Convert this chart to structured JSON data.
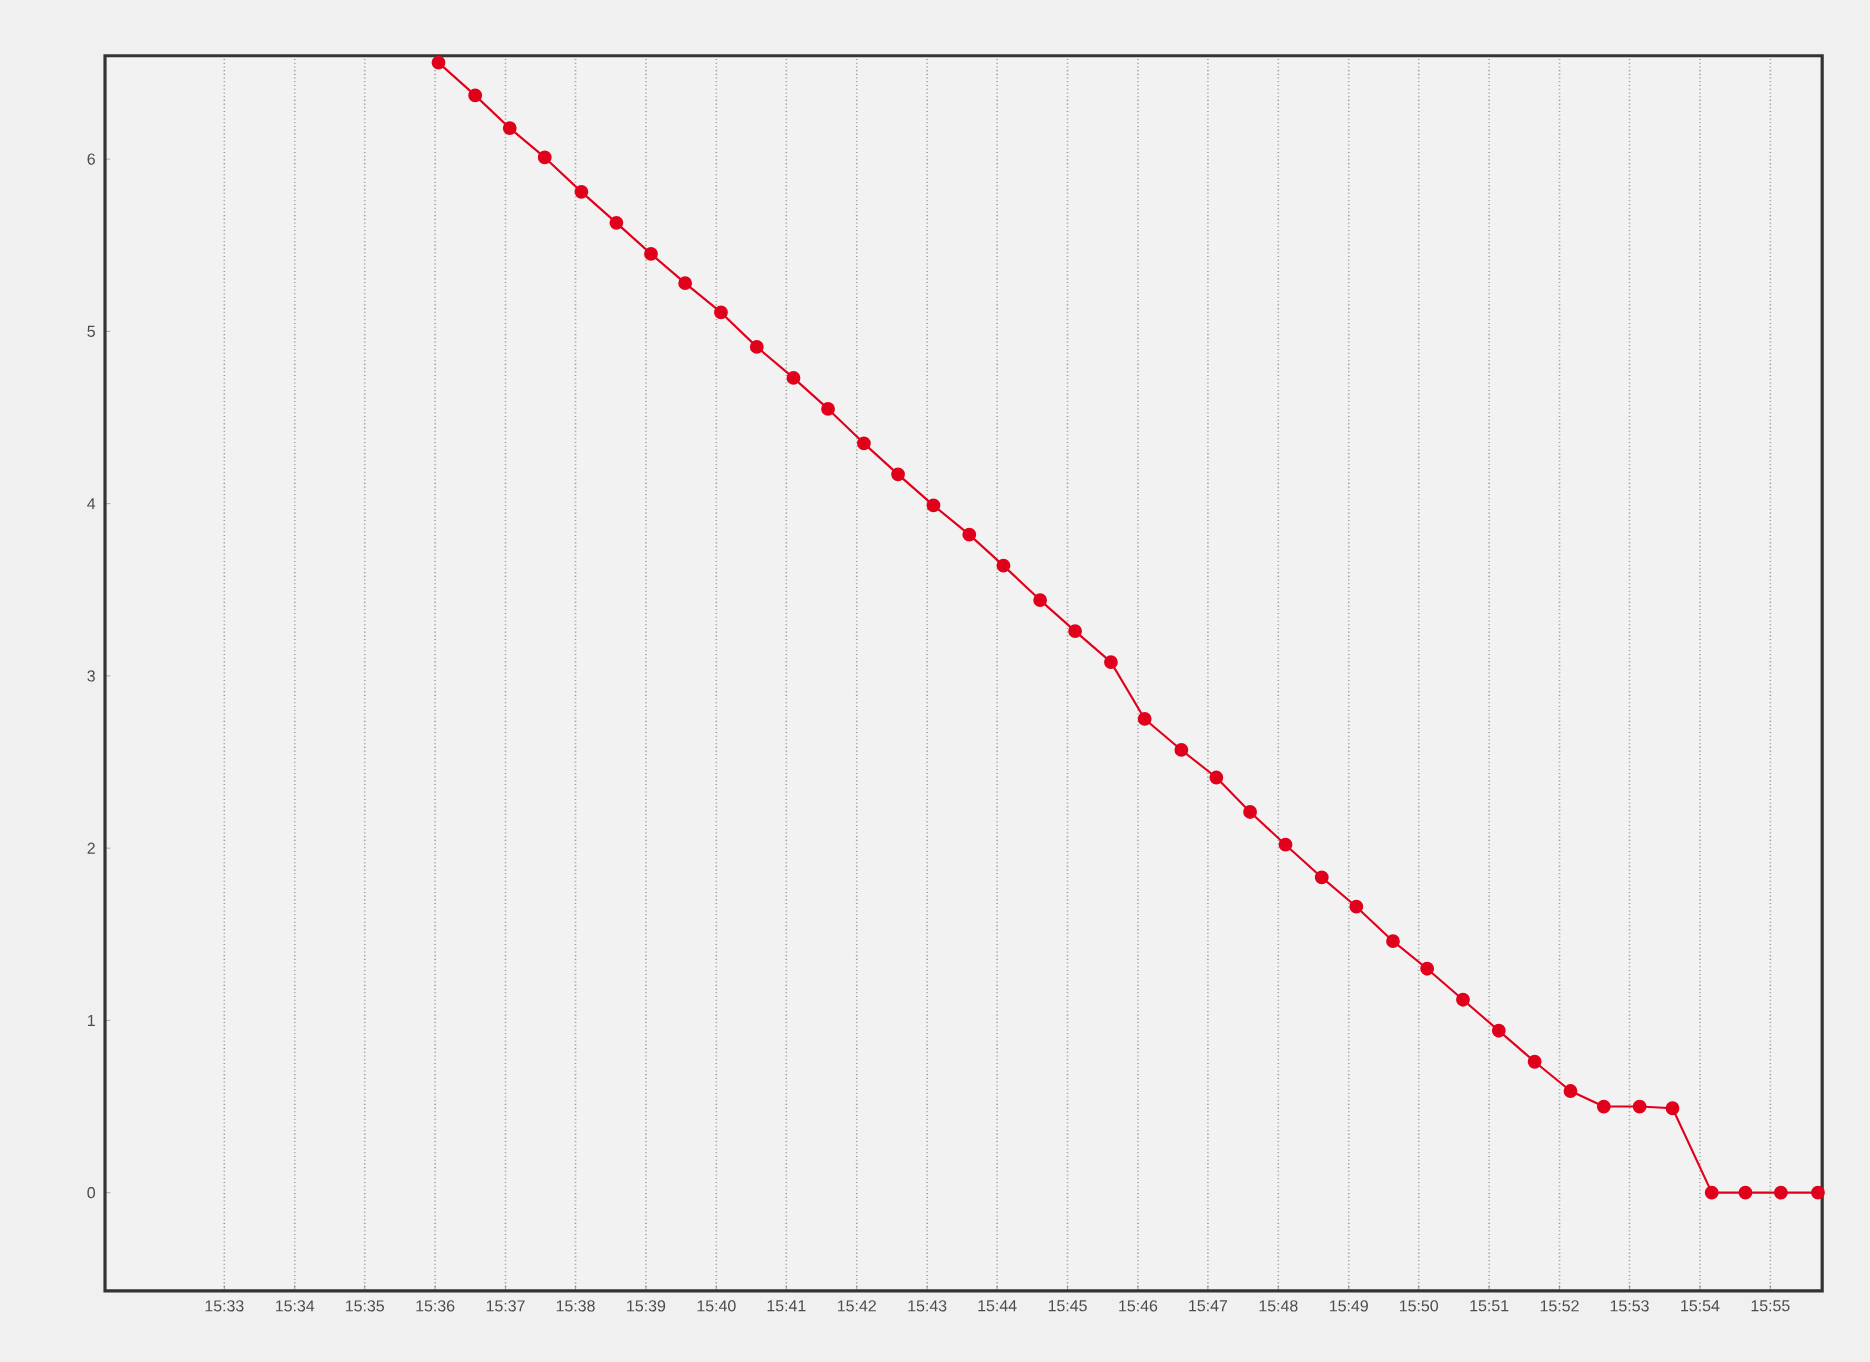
{
  "chart_data": {
    "type": "line",
    "x": [
      15.6008,
      15.6095,
      15.6177,
      15.626,
      15.6347,
      15.643,
      15.6512,
      15.6593,
      15.6678,
      15.6763,
      15.685,
      15.6932,
      15.7017,
      15.7098,
      15.7182,
      15.7267,
      15.7348,
      15.7435,
      15.7518,
      15.7603,
      15.7683,
      15.777,
      15.7853,
      15.7933,
      15.8017,
      15.8103,
      15.8185,
      15.8272,
      15.8353,
      15.8438,
      15.8523,
      15.8608,
      15.8693,
      15.8772,
      15.8857,
      15.8935,
      15.9028,
      15.9108,
      15.9192,
      15.928
    ],
    "series": [
      {
        "color": "#e0001b",
        "values": [
          6.56,
          6.37,
          6.18,
          6.01,
          5.81,
          5.63,
          5.45,
          5.28,
          5.11,
          4.91,
          4.73,
          4.55,
          4.35,
          4.17,
          3.99,
          3.82,
          3.64,
          3.44,
          3.26,
          3.08,
          2.75,
          2.57,
          2.41,
          2.21,
          2.02,
          1.83,
          1.66,
          1.46,
          1.3,
          1.12,
          0.94,
          0.76,
          0.59,
          0.5,
          0.5,
          0.49,
          0,
          0,
          0,
          0
        ]
      }
    ],
    "xlim": [
      15.5217,
      15.929
    ],
    "ylim": [
      -0.57,
      6.6
    ],
    "xticks": [
      {
        "value": 15.55,
        "label": "15:33"
      },
      {
        "value": 15.5667,
        "label": "15:34"
      },
      {
        "value": 15.5833,
        "label": "15:35"
      },
      {
        "value": 15.6,
        "label": "15:36"
      },
      {
        "value": 15.6167,
        "label": "15:37"
      },
      {
        "value": 15.6333,
        "label": "15:38"
      },
      {
        "value": 15.65,
        "label": "15:39"
      },
      {
        "value": 15.6667,
        "label": "15:40"
      },
      {
        "value": 15.6833,
        "label": "15:41"
      },
      {
        "value": 15.7,
        "label": "15:42"
      },
      {
        "value": 15.7167,
        "label": "15:43"
      },
      {
        "value": 15.7333,
        "label": "15:44"
      },
      {
        "value": 15.75,
        "label": "15:45"
      },
      {
        "value": 15.7667,
        "label": "15:46"
      },
      {
        "value": 15.7833,
        "label": "15:47"
      },
      {
        "value": 15.8,
        "label": "15:48"
      },
      {
        "value": 15.8167,
        "label": "15:49"
      },
      {
        "value": 15.8333,
        "label": "15:50"
      },
      {
        "value": 15.85,
        "label": "15:51"
      },
      {
        "value": 15.8667,
        "label": "15:52"
      },
      {
        "value": 15.8833,
        "label": "15:53"
      },
      {
        "value": 15.9,
        "label": "15:54"
      },
      {
        "value": 15.9167,
        "label": "15:55"
      }
    ],
    "yticks": [
      0,
      1,
      2,
      3,
      4,
      5,
      6
    ],
    "grid": "x",
    "marker": "circle",
    "line_style": "solid"
  }
}
